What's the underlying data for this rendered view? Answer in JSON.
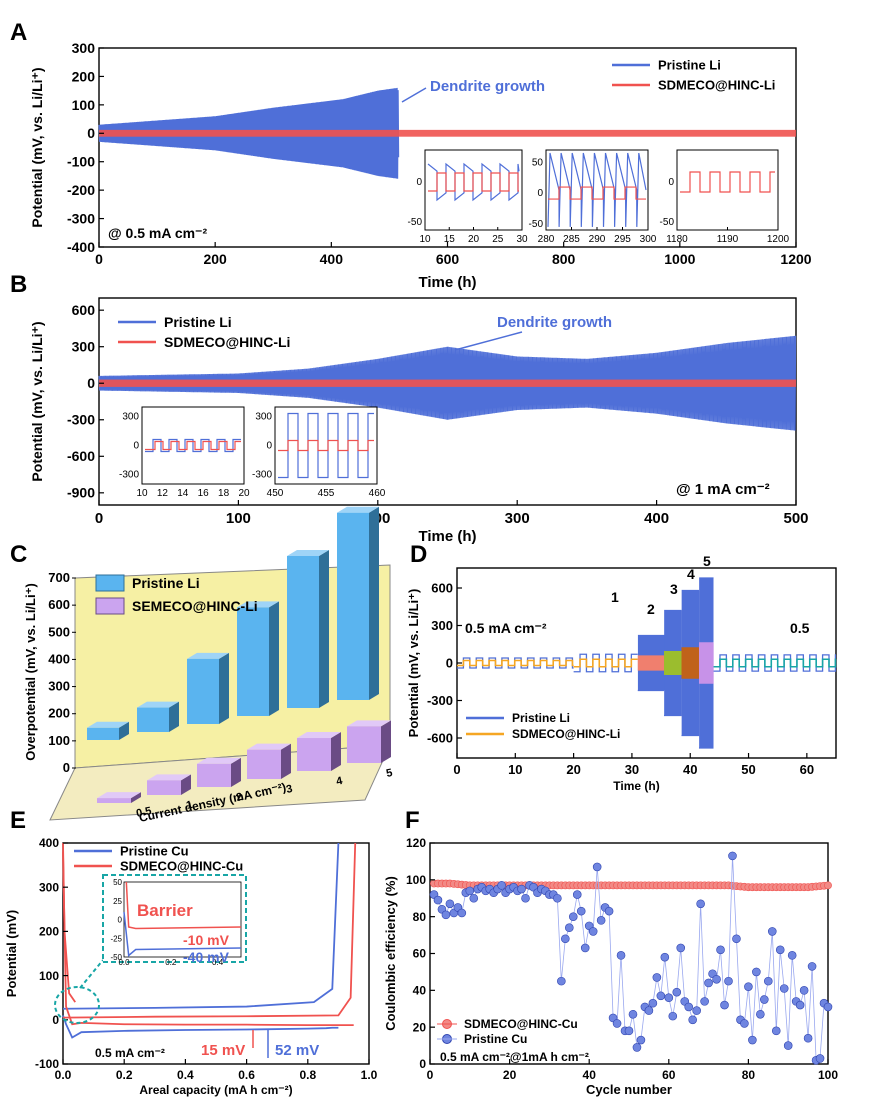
{
  "panel_letters": [
    "A",
    "B",
    "C",
    "D",
    "E",
    "F"
  ],
  "colors": {
    "blue": "#4f6fd8",
    "red": "#f0524f",
    "cyan": "#18a6a6",
    "orange": "#f5a623",
    "barBlue": "#5ab4ef",
    "barPurple": "#cba4ef",
    "wall": "#f6f0a4"
  },
  "chart_data": [
    {
      "panel": "A",
      "type": "line",
      "xlabel": "Time (h)",
      "ylabel": "Potential (mV, vs. Li/Li⁺)",
      "xlim": [
        0,
        1200
      ],
      "ylim": [
        -400,
        300
      ],
      "xticks": [
        "0",
        "200",
        "400",
        "600",
        "800",
        "1000",
        "1200"
      ],
      "yticks": [
        "300",
        "200",
        "100",
        "0",
        "-100",
        "-200",
        "-300",
        "-400"
      ],
      "series": [
        {
          "name": "Pristine Li",
          "color": "#4f6fd8",
          "x": [
            0,
            100,
            200,
            300,
            380,
            420,
            480,
            515,
            517
          ],
          "y_amplitude": [
            30,
            45,
            60,
            90,
            110,
            120,
            150,
            160,
            0
          ]
        },
        {
          "name": "SDMECO@HINC-Li",
          "color": "#f0524f",
          "x": [
            0,
            1200
          ],
          "y_amplitude": [
            12,
            12
          ]
        }
      ],
      "annotations": [
        "Dendrite growth",
        "@ 0.5 mA cm⁻²"
      ],
      "insets": [
        {
          "xticks": [
            "10",
            "15",
            "20",
            "25",
            "30"
          ],
          "yticks": [
            "0",
            "-50"
          ],
          "ylim": [
            -60,
            40
          ],
          "xlim": [
            10,
            30
          ]
        },
        {
          "xticks": [
            "280",
            "285",
            "290",
            "295",
            "300"
          ],
          "yticks": [
            "50",
            "0",
            "-50"
          ],
          "ylim": [
            -60,
            70
          ],
          "xlim": [
            280,
            300
          ]
        },
        {
          "xticks": [
            "1180",
            "1190",
            "1200"
          ],
          "yticks": [
            "0",
            "-50"
          ],
          "ylim": [
            -60,
            40
          ],
          "xlim": [
            1180,
            1200
          ]
        }
      ]
    },
    {
      "panel": "B",
      "type": "line",
      "xlabel": "Time (h)",
      "ylabel": "Potential (mV, vs. Li/Li⁺)",
      "xlim": [
        0,
        500
      ],
      "ylim": [
        -1000,
        700
      ],
      "xticks": [
        "0",
        "100",
        "200",
        "300",
        "400",
        "500"
      ],
      "yticks": [
        "600",
        "300",
        "0",
        "-300",
        "-600",
        "-900"
      ],
      "series": [
        {
          "name": "Pristine Li",
          "color": "#4f6fd8",
          "x": [
            0,
            100,
            150,
            200,
            250,
            300,
            350,
            400,
            450,
            500
          ],
          "y_amplitude": [
            60,
            80,
            120,
            200,
            300,
            220,
            200,
            250,
            330,
            390
          ]
        },
        {
          "name": "SDMECO@HINC-Li",
          "color": "#f0524f",
          "x": [
            0,
            500
          ],
          "y_amplitude": [
            30,
            30
          ]
        }
      ],
      "annotations": [
        "Dendrite growth",
        "@ 1 mA cm⁻²"
      ],
      "insets": [
        {
          "xticks": [
            "10",
            "12",
            "14",
            "16",
            "18",
            "20"
          ],
          "yticks": [
            "300",
            "0",
            "-300"
          ],
          "ylim": [
            -400,
            400
          ],
          "xlim": [
            10,
            20
          ]
        },
        {
          "xticks": [
            "450",
            "455",
            "460"
          ],
          "yticks": [
            "300",
            "0",
            "-300"
          ],
          "ylim": [
            -400,
            400
          ],
          "xlim": [
            450,
            460
          ]
        }
      ]
    },
    {
      "panel": "C",
      "type": "bar",
      "ylabel": "Overpotential (mV, vs. Li/Li⁺)",
      "xlabel": "Current density (mA cm⁻²)",
      "categories": [
        "0.5",
        "1",
        "2",
        "3",
        "4",
        "5"
      ],
      "ylim": [
        0,
        700
      ],
      "yticks": [
        "0",
        "100",
        "200",
        "300",
        "400",
        "500",
        "600",
        "700"
      ],
      "series": [
        {
          "name": "Pristine Li",
          "values": [
            45,
            90,
            240,
            400,
            560,
            690
          ]
        },
        {
          "name": "SEMECO@HINC-Li",
          "values": [
            20,
            60,
            95,
            120,
            135,
            150
          ]
        }
      ]
    },
    {
      "panel": "D",
      "type": "line",
      "xlabel": "Time (h)",
      "ylabel": "Potential (mV, vs. Li/Li⁺)",
      "xlim": [
        0,
        65
      ],
      "ylim": [
        -760,
        760
      ],
      "xticks": [
        "0",
        "10",
        "20",
        "30",
        "40",
        "50",
        "60"
      ],
      "yticks": [
        "600",
        "300",
        "0",
        "-300",
        "-600"
      ],
      "segments": [
        {
          "label": "0.5 mA cm⁻²",
          "x": [
            0,
            20
          ],
          "pristine_amp": 40,
          "sdmeco_amp": 20
        },
        {
          "label": "1",
          "x": [
            20,
            31
          ],
          "pristine_amp": 70,
          "sdmeco_amp": 30
        },
        {
          "label": "2",
          "x": [
            31,
            35.5
          ],
          "pristine_amp": 220,
          "sdmeco_amp": 55
        },
        {
          "label": "3",
          "x": [
            35.5,
            38.5
          ],
          "pristine_amp": 420,
          "sdmeco_amp": 90
        },
        {
          "label": "4",
          "x": [
            38.5,
            41.5
          ],
          "pristine_amp": 580,
          "sdmeco_amp": 120
        },
        {
          "label": "5",
          "x": [
            41.5,
            44
          ],
          "pristine_amp": 680,
          "sdmeco_amp": 160
        },
        {
          "label": "0.5",
          "x": [
            44,
            65
          ],
          "pristine_amp": 65,
          "sdmeco_amp": 30
        }
      ],
      "series": [
        {
          "name": "Pristine Li",
          "color": "#4f6fd8"
        },
        {
          "name": "SDMECO@HINC-Li",
          "color": "#f5a623"
        }
      ]
    },
    {
      "panel": "E",
      "type": "line",
      "xlabel": "Areal capacity (mA h cm⁻²)",
      "ylabel": "Potential (mV)",
      "xlim": [
        0,
        1.0
      ],
      "ylim": [
        -100,
        400
      ],
      "xticks": [
        "0.0",
        "0.2",
        "0.4",
        "0.6",
        "0.8",
        "1.0"
      ],
      "yticks": [
        "400",
        "300",
        "200",
        "100",
        "0",
        "-100"
      ],
      "series": [
        {
          "name": "Pristine Cu",
          "color": "#4f6fd8",
          "x": [
            0.0,
            0.01,
            0.03,
            0.06,
            0.2,
            0.4,
            0.6,
            0.8,
            0.86,
            0.88,
            0.9
          ],
          "y": [
            10,
            -10,
            -40,
            -28,
            -25,
            -23,
            -22,
            -20,
            -19,
            -18,
            -18
          ]
        },
        {
          "name": "SDMECO@HINC-Cu",
          "color": "#f0524f",
          "x": [
            0.0,
            0.01,
            0.03,
            0.06,
            0.2,
            0.4,
            0.6,
            0.8,
            0.9,
            0.95
          ],
          "y": [
            380,
            30,
            -10,
            -7,
            -10,
            -11,
            -11,
            -12,
            -12,
            -12
          ]
        }
      ],
      "annotations": [
        "0.5 mA cm⁻²",
        "15 mV",
        "52 mV",
        "Barrier",
        "-10 mV",
        "-40 mV"
      ],
      "inset": {
        "xticks": [
          "0.0",
          "0.2",
          "0.4"
        ],
        "yticks": [
          "50",
          "25",
          "0",
          "-25",
          "-50"
        ]
      }
    },
    {
      "panel": "F",
      "type": "scatter",
      "xlabel": "Cycle number",
      "ylabel": "Coulombic efficiency (%)",
      "xlim": [
        0,
        100
      ],
      "ylim": [
        0,
        120
      ],
      "xticks": [
        "0",
        "20",
        "40",
        "60",
        "80",
        "100"
      ],
      "yticks": [
        "0",
        "20",
        "40",
        "60",
        "80",
        "100",
        "120"
      ],
      "annotations": [
        "0.5 mA cm⁻²@1mA h cm⁻²"
      ],
      "series": [
        {
          "name": "SDMECO@HINC-Cu",
          "color": "#f0524f",
          "x": [
            1,
            5,
            10,
            15,
            20,
            25,
            30,
            35,
            40,
            45,
            50,
            55,
            60,
            65,
            70,
            75,
            80,
            85,
            90,
            95,
            100
          ],
          "y": [
            98,
            98,
            97,
            97,
            97,
            97,
            97,
            97,
            97,
            97,
            97,
            97,
            97,
            97,
            97,
            97,
            96,
            96,
            96,
            96,
            97
          ]
        },
        {
          "name": "Pristine Cu",
          "color": "#4f6fd8",
          "x": [
            1,
            2,
            3,
            4,
            5,
            6,
            7,
            8,
            9,
            10,
            11,
            12,
            13,
            14,
            15,
            16,
            17,
            18,
            19,
            20,
            21,
            22,
            23,
            24,
            25,
            26,
            27,
            28,
            29,
            30,
            31,
            32,
            33,
            34,
            35,
            36,
            37,
            38,
            39,
            40,
            41,
            42,
            43,
            44,
            45,
            46,
            47,
            48,
            49,
            50,
            51,
            52,
            53,
            54,
            55,
            56,
            57,
            58,
            59,
            60,
            61,
            62,
            63,
            64,
            65,
            66,
            67,
            68,
            69,
            70,
            71,
            72,
            73,
            74,
            75,
            76,
            77,
            78,
            79,
            80,
            81,
            82,
            83,
            84,
            85,
            86,
            87,
            88,
            89,
            90,
            91,
            92,
            93,
            94,
            95,
            96,
            97,
            98,
            99,
            100
          ],
          "y": [
            92,
            89,
            84,
            81,
            87,
            82,
            85,
            82,
            93,
            94,
            90,
            95,
            96,
            94,
            95,
            93,
            95,
            97,
            93,
            95,
            96,
            94,
            95,
            90,
            97,
            96,
            93,
            95,
            94,
            92,
            92,
            90,
            45,
            68,
            74,
            80,
            92,
            83,
            63,
            75,
            72,
            107,
            78,
            85,
            83,
            25,
            22,
            59,
            18,
            18,
            27,
            9,
            13,
            31,
            29,
            33,
            47,
            37,
            58,
            36,
            26,
            39,
            63,
            34,
            31,
            24,
            29,
            87,
            34,
            44,
            49,
            46,
            62,
            32,
            45,
            113,
            68,
            24,
            22,
            42,
            13,
            50,
            27,
            35,
            45,
            72,
            18,
            62,
            41,
            10,
            59,
            34,
            32,
            40,
            14,
            53,
            2,
            3,
            33,
            31
          ]
        }
      ]
    }
  ]
}
